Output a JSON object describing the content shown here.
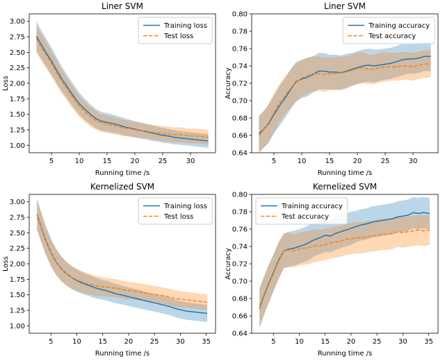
{
  "figure": {
    "background": "#ffffff",
    "description": "2x2 grid of SVM training curve plots"
  },
  "colors": {
    "training_line": "#1f77b4",
    "test_line": "#ff7f0e",
    "band_opacity": 0.3,
    "axis": "#000000",
    "legend_border": "#cccccc",
    "legend_bg": "#ffffff"
  },
  "chart_data": [
    {
      "id": "liner-svm-loss",
      "type": "line",
      "title": "Liner SVM",
      "xlabel": "Running time /s",
      "ylabel": "Loss",
      "xlim": [
        1.0,
        34.5
      ],
      "ylim": [
        0.88,
        3.12
      ],
      "xticks": [
        5,
        10,
        15,
        20,
        25,
        30
      ],
      "yticks": [
        1.0,
        1.25,
        1.5,
        1.75,
        2.0,
        2.25,
        2.5,
        2.75,
        3.0
      ],
      "xtick_decimals": 0,
      "ytick_decimals": 2,
      "grid": false,
      "legend_loc": "upper-right",
      "x": [
        2.3,
        3,
        4,
        5,
        6,
        7,
        8,
        9,
        10,
        11,
        12,
        13,
        14,
        15,
        16,
        17,
        18,
        19,
        20,
        21,
        22,
        23,
        24,
        25,
        26,
        27,
        28,
        29,
        30,
        31,
        32,
        33.2
      ],
      "series": [
        {
          "name": "Training loss",
          "style": "solid",
          "color_key": "training_line",
          "values": [
            2.76,
            2.65,
            2.5,
            2.36,
            2.2,
            2.05,
            1.92,
            1.79,
            1.67,
            1.58,
            1.5,
            1.43,
            1.39,
            1.37,
            1.35,
            1.33,
            1.3,
            1.28,
            1.26,
            1.24,
            1.22,
            1.2,
            1.18,
            1.16,
            1.15,
            1.13,
            1.12,
            1.11,
            1.1,
            1.09,
            1.08,
            1.07
          ],
          "spread": [
            0.24,
            0.235,
            0.225,
            0.22,
            0.21,
            0.2,
            0.19,
            0.185,
            0.175,
            0.17,
            0.16,
            0.155,
            0.15,
            0.15,
            0.145,
            0.14,
            0.14,
            0.135,
            0.13,
            0.13,
            0.125,
            0.125,
            0.12,
            0.12,
            0.115,
            0.115,
            0.11,
            0.11,
            0.11,
            0.11,
            0.11,
            0.11
          ]
        },
        {
          "name": "Test loss",
          "style": "dashed",
          "color_key": "test_line",
          "values": [
            2.72,
            2.61,
            2.46,
            2.32,
            2.16,
            2.01,
            1.88,
            1.75,
            1.63,
            1.54,
            1.46,
            1.4,
            1.36,
            1.34,
            1.32,
            1.3,
            1.28,
            1.27,
            1.25,
            1.24,
            1.23,
            1.21,
            1.2,
            1.19,
            1.18,
            1.17,
            1.17,
            1.16,
            1.15,
            1.15,
            1.14,
            1.13
          ],
          "spread": [
            0.22,
            0.215,
            0.21,
            0.205,
            0.2,
            0.19,
            0.185,
            0.18,
            0.17,
            0.165,
            0.16,
            0.15,
            0.145,
            0.14,
            0.14,
            0.135,
            0.13,
            0.13,
            0.125,
            0.125,
            0.12,
            0.12,
            0.12,
            0.12,
            0.12,
            0.12,
            0.12,
            0.12,
            0.12,
            0.12,
            0.12,
            0.12
          ]
        }
      ]
    },
    {
      "id": "liner-svm-accuracy",
      "type": "line",
      "title": "Liner SVM",
      "xlabel": "Running time /s",
      "ylabel": "Accuracy",
      "xlim": [
        1.0,
        34.5
      ],
      "ylim": [
        0.64,
        0.8
      ],
      "xticks": [
        5,
        10,
        15,
        20,
        25,
        30
      ],
      "yticks": [
        0.64,
        0.66,
        0.68,
        0.7,
        0.72,
        0.74,
        0.76,
        0.78,
        0.8
      ],
      "xtick_decimals": 0,
      "ytick_decimals": 2,
      "grid": false,
      "legend_loc": "upper-right",
      "x": [
        2.3,
        3,
        4,
        5,
        6,
        7,
        8,
        9,
        10,
        11,
        12,
        13,
        14,
        15,
        16,
        17,
        18,
        19,
        20,
        21,
        22,
        23,
        24,
        25,
        26,
        27,
        28,
        29,
        30,
        31,
        32,
        33.2
      ],
      "series": [
        {
          "name": "Training accuracy",
          "style": "solid",
          "color_key": "training_line",
          "values": [
            0.662,
            0.666,
            0.673,
            0.684,
            0.694,
            0.703,
            0.713,
            0.722,
            0.725,
            0.727,
            0.73,
            0.734,
            0.734,
            0.733,
            0.733,
            0.732,
            0.734,
            0.736,
            0.738,
            0.74,
            0.741,
            0.74,
            0.741,
            0.742,
            0.743,
            0.745,
            0.747,
            0.748,
            0.748,
            0.749,
            0.751,
            0.751
          ],
          "spread": [
            0.021,
            0.021,
            0.022,
            0.022,
            0.023,
            0.023,
            0.023,
            0.023,
            0.022,
            0.022,
            0.021,
            0.021,
            0.021,
            0.02,
            0.02,
            0.02,
            0.02,
            0.019,
            0.019,
            0.019,
            0.019,
            0.019,
            0.018,
            0.018,
            0.018,
            0.018,
            0.018,
            0.017,
            0.017,
            0.017,
            0.017,
            0.017
          ]
        },
        {
          "name": "Test accuracy",
          "style": "dashed",
          "color_key": "test_line",
          "values": [
            0.66,
            0.665,
            0.674,
            0.686,
            0.697,
            0.706,
            0.714,
            0.721,
            0.726,
            0.729,
            0.731,
            0.731,
            0.73,
            0.731,
            0.731,
            0.732,
            0.733,
            0.735,
            0.737,
            0.738,
            0.736,
            0.736,
            0.738,
            0.739,
            0.739,
            0.739,
            0.74,
            0.74,
            0.739,
            0.741,
            0.742,
            0.743
          ],
          "spread": [
            0.021,
            0.021,
            0.022,
            0.022,
            0.022,
            0.022,
            0.022,
            0.022,
            0.021,
            0.021,
            0.02,
            0.02,
            0.02,
            0.019,
            0.019,
            0.019,
            0.018,
            0.018,
            0.018,
            0.018,
            0.017,
            0.017,
            0.017,
            0.017,
            0.016,
            0.016,
            0.016,
            0.016,
            0.016,
            0.016,
            0.016,
            0.016
          ]
        }
      ]
    },
    {
      "id": "kernelized-svm-loss",
      "type": "line",
      "title": "Kernelized SVM",
      "xlabel": "Running time /s",
      "ylabel": "Loss",
      "xlim": [
        0.8,
        36.8
      ],
      "ylim": [
        0.88,
        3.12
      ],
      "xticks": [
        5,
        10,
        15,
        20,
        25,
        30,
        35
      ],
      "yticks": [
        1.0,
        1.25,
        1.5,
        1.75,
        2.0,
        2.25,
        2.5,
        2.75,
        3.0
      ],
      "xtick_decimals": 0,
      "ytick_decimals": 2,
      "grid": false,
      "legend_loc": "upper-right",
      "x": [
        2.3,
        3,
        4,
        5,
        6,
        7,
        8,
        9,
        10,
        11,
        12,
        13,
        14,
        15,
        16,
        17,
        18,
        19,
        20,
        21,
        22,
        23,
        24,
        25,
        26,
        27,
        28,
        29,
        30,
        31,
        32,
        33,
        34,
        35.2
      ],
      "series": [
        {
          "name": "Training loss",
          "style": "solid",
          "color_key": "training_line",
          "values": [
            2.8,
            2.62,
            2.38,
            2.18,
            2.03,
            1.92,
            1.84,
            1.78,
            1.73,
            1.69,
            1.66,
            1.63,
            1.6,
            1.58,
            1.56,
            1.53,
            1.51,
            1.49,
            1.47,
            1.45,
            1.43,
            1.41,
            1.39,
            1.37,
            1.35,
            1.33,
            1.31,
            1.28,
            1.26,
            1.24,
            1.23,
            1.22,
            1.21,
            1.2
          ],
          "spread": [
            0.25,
            0.24,
            0.23,
            0.22,
            0.21,
            0.2,
            0.19,
            0.185,
            0.18,
            0.175,
            0.17,
            0.17,
            0.165,
            0.16,
            0.16,
            0.155,
            0.155,
            0.15,
            0.15,
            0.15,
            0.148,
            0.146,
            0.144,
            0.142,
            0.14,
            0.14,
            0.14,
            0.14,
            0.14,
            0.14,
            0.14,
            0.14,
            0.14,
            0.14
          ]
        },
        {
          "name": "Test loss",
          "style": "dashed",
          "color_key": "test_line",
          "values": [
            2.8,
            2.62,
            2.38,
            2.18,
            2.03,
            1.92,
            1.84,
            1.78,
            1.74,
            1.71,
            1.68,
            1.66,
            1.64,
            1.63,
            1.62,
            1.61,
            1.6,
            1.58,
            1.57,
            1.56,
            1.55,
            1.53,
            1.52,
            1.51,
            1.49,
            1.48,
            1.46,
            1.44,
            1.43,
            1.42,
            1.41,
            1.4,
            1.39,
            1.38
          ],
          "spread": [
            0.25,
            0.24,
            0.23,
            0.22,
            0.21,
            0.2,
            0.19,
            0.185,
            0.18,
            0.175,
            0.17,
            0.165,
            0.16,
            0.155,
            0.15,
            0.148,
            0.146,
            0.144,
            0.142,
            0.14,
            0.14,
            0.138,
            0.138,
            0.136,
            0.136,
            0.134,
            0.134,
            0.132,
            0.132,
            0.13,
            0.13,
            0.13,
            0.13,
            0.13
          ]
        }
      ]
    },
    {
      "id": "kernelized-svm-accuracy",
      "type": "line",
      "title": "Kernelized SVM",
      "xlabel": "Running time /s",
      "ylabel": "Accuracy",
      "xlim": [
        0.8,
        36.8
      ],
      "ylim": [
        0.64,
        0.8
      ],
      "xticks": [
        5,
        10,
        15,
        20,
        25,
        30,
        35
      ],
      "yticks": [
        0.64,
        0.66,
        0.68,
        0.7,
        0.72,
        0.74,
        0.76,
        0.78,
        0.8
      ],
      "xtick_decimals": 0,
      "ytick_decimals": 2,
      "grid": false,
      "legend_loc": "upper-left",
      "x": [
        2.3,
        3,
        4,
        5,
        6,
        7,
        8,
        9,
        10,
        11,
        12,
        13,
        14,
        15,
        16,
        17,
        18,
        19,
        20,
        21,
        22,
        23,
        24,
        25,
        26,
        27,
        28,
        29,
        30,
        31,
        32,
        33,
        34,
        35.2
      ],
      "series": [
        {
          "name": "Training accuracy",
          "style": "solid",
          "color_key": "training_line",
          "values": [
            0.669,
            0.681,
            0.696,
            0.71,
            0.724,
            0.735,
            0.737,
            0.738,
            0.74,
            0.742,
            0.745,
            0.748,
            0.75,
            0.753,
            0.752,
            0.755,
            0.757,
            0.759,
            0.761,
            0.763,
            0.765,
            0.766,
            0.768,
            0.769,
            0.77,
            0.771,
            0.772,
            0.774,
            0.775,
            0.776,
            0.779,
            0.778,
            0.779,
            0.778
          ],
          "spread": [
            0.0225,
            0.022,
            0.022,
            0.021,
            0.021,
            0.02,
            0.02,
            0.02,
            0.02,
            0.02,
            0.02,
            0.019,
            0.019,
            0.019,
            0.019,
            0.019,
            0.019,
            0.019,
            0.019,
            0.018,
            0.018,
            0.018,
            0.018,
            0.018,
            0.018,
            0.018,
            0.018,
            0.018,
            0.018,
            0.018,
            0.018,
            0.018,
            0.018,
            0.018
          ]
        },
        {
          "name": "Test accuracy",
          "style": "dashed",
          "color_key": "test_line",
          "values": [
            0.668,
            0.68,
            0.695,
            0.709,
            0.723,
            0.735,
            0.736,
            0.735,
            0.737,
            0.738,
            0.739,
            0.741,
            0.741,
            0.742,
            0.744,
            0.745,
            0.746,
            0.748,
            0.749,
            0.75,
            0.75,
            0.751,
            0.752,
            0.753,
            0.754,
            0.754,
            0.755,
            0.757,
            0.756,
            0.757,
            0.758,
            0.759,
            0.758,
            0.759
          ],
          "spread": [
            0.0225,
            0.022,
            0.022,
            0.021,
            0.021,
            0.02,
            0.02,
            0.019,
            0.019,
            0.019,
            0.019,
            0.019,
            0.018,
            0.018,
            0.018,
            0.018,
            0.018,
            0.018,
            0.018,
            0.018,
            0.018,
            0.018,
            0.018,
            0.018,
            0.018,
            0.018,
            0.018,
            0.0175,
            0.0175,
            0.0175,
            0.0175,
            0.0175,
            0.0175,
            0.0175
          ]
        }
      ]
    }
  ]
}
